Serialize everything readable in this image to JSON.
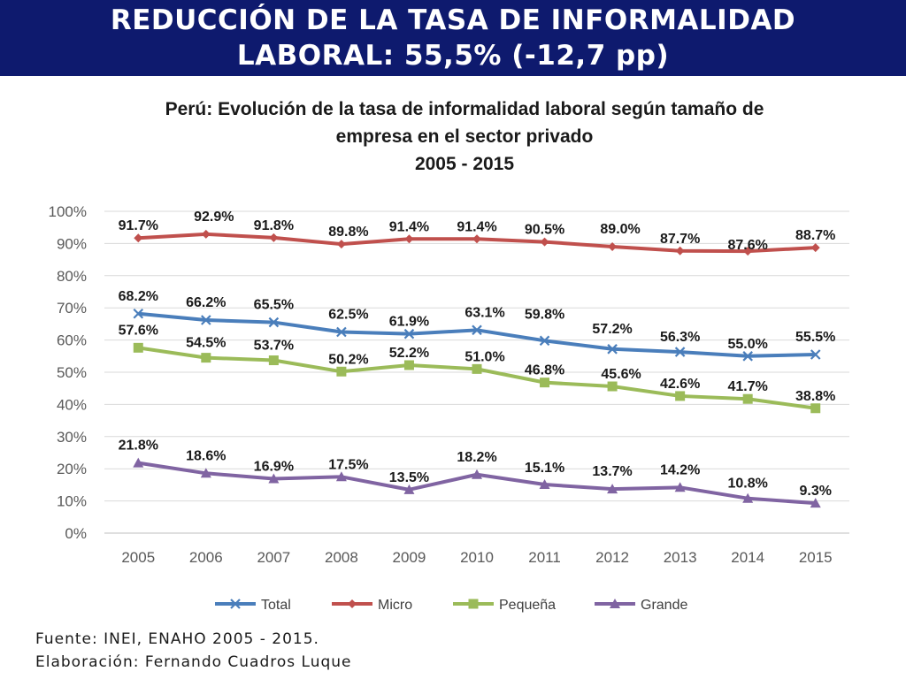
{
  "banner": {
    "line1": "REDUCCIÓN DE LA TASA DE INFORMALIDAD",
    "line2": "LABORAL: 55,5% (-12,7 pp)"
  },
  "footer": {
    "source": "Fuente: INEI, ENAHO 2005 - 2015.",
    "author": "Elaboración: Fernando Cuadros Luque"
  },
  "chart_data": {
    "type": "line",
    "title_lines": [
      "Perú: Evolución de la tasa de informalidad laboral según tamaño de",
      "empresa en el sector privado",
      "2005 - 2015"
    ],
    "xlabel": "",
    "ylabel": "",
    "x": [
      "2005",
      "2006",
      "2007",
      "2008",
      "2009",
      "2010",
      "2011",
      "2012",
      "2013",
      "2014",
      "2015"
    ],
    "ylim": [
      0,
      100
    ],
    "yticks": [
      0,
      10,
      20,
      30,
      40,
      50,
      60,
      70,
      80,
      90,
      100
    ],
    "ytick_labels": [
      "0%",
      "10%",
      "20%",
      "30%",
      "40%",
      "50%",
      "60%",
      "70%",
      "80%",
      "90%",
      "100%"
    ],
    "grid": true,
    "legend_position": "bottom",
    "series": [
      {
        "name": "Total",
        "color": "#4a7ebb",
        "marker": "x",
        "values": [
          68.2,
          66.2,
          65.5,
          62.5,
          61.9,
          63.1,
          59.8,
          57.2,
          56.3,
          55.0,
          55.5
        ],
        "labels": [
          "68.2%",
          "66.2%",
          "65.5%",
          "62.5%",
          "61.9%",
          "63.1%",
          "59.8%",
          "57.2%",
          "56.3%",
          "55.0%",
          "55.5%"
        ]
      },
      {
        "name": "Micro",
        "color": "#c0504d",
        "marker": "diamond",
        "values": [
          91.7,
          92.9,
          91.8,
          89.8,
          91.4,
          91.4,
          90.5,
          89.0,
          87.7,
          87.6,
          88.7
        ],
        "labels": [
          "91.7%",
          "92.9%",
          "91.8%",
          "89.8%",
          "91.4%",
          "91.4%",
          "90.5%",
          "89.0%",
          "87.7%",
          "87.6%",
          "88.7%"
        ]
      },
      {
        "name": "Pequeña",
        "color": "#9bbb59",
        "marker": "square",
        "values": [
          57.6,
          54.5,
          53.7,
          50.2,
          52.2,
          51.0,
          46.8,
          45.6,
          42.6,
          41.7,
          38.8
        ],
        "labels": [
          "57.6%",
          "54.5%",
          "53.7%",
          "50.2%",
          "52.2%",
          "51.0%",
          "46.8%",
          "45.6%",
          "42.6%",
          "41.7%",
          "38.8%"
        ]
      },
      {
        "name": "Grande",
        "color": "#8064a2",
        "marker": "triangle",
        "values": [
          21.8,
          18.6,
          16.9,
          17.5,
          13.5,
          18.2,
          15.1,
          13.7,
          14.2,
          10.8,
          9.3
        ],
        "labels": [
          "21.8%",
          "18.6%",
          "16.9%",
          "17.5%",
          "13.5%",
          "18.2%",
          "15.1%",
          "13.7%",
          "14.2%",
          "10.8%",
          "9.3%"
        ]
      }
    ]
  }
}
